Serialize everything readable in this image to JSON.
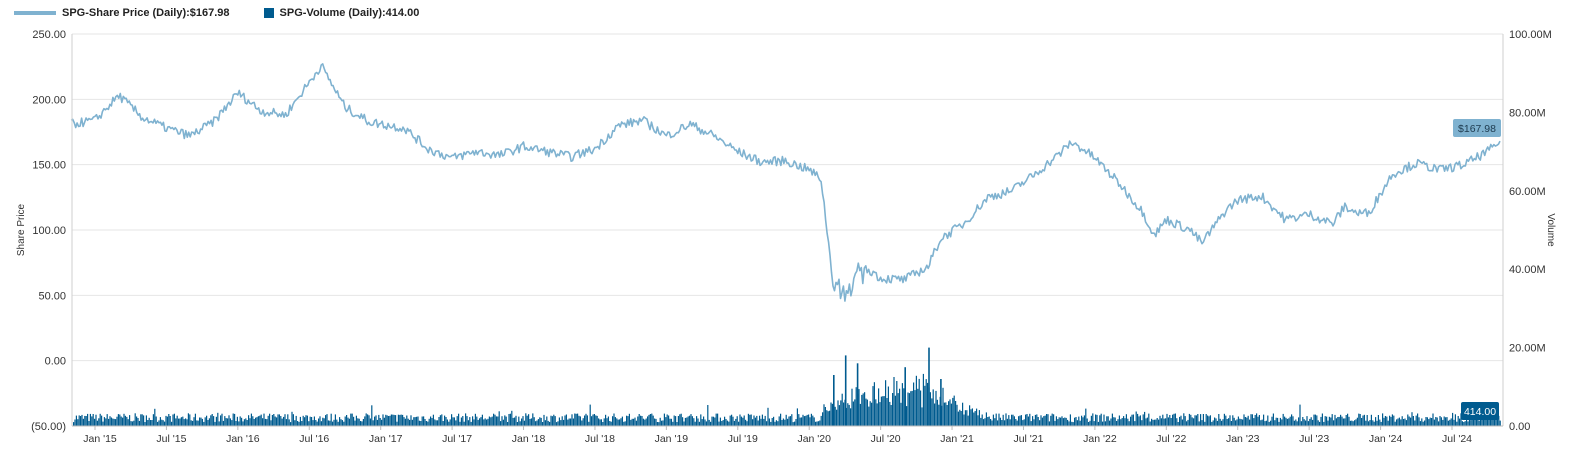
{
  "legend": {
    "price_label": "SPG-Share Price (Daily):$167.98",
    "volume_label": "SPG-Volume (Daily):414.00"
  },
  "colors": {
    "price": "#7fb2d0",
    "volume": "#005b8f",
    "grid": "#e6e6e6"
  },
  "chart_data": {
    "type": "line",
    "x_ticks": [
      "Jan '15",
      "Jul '15",
      "Jan '16",
      "Jul '16",
      "Jan '17",
      "Jul '17",
      "Jan '18",
      "Jul '18",
      "Jan '19",
      "Jul '19",
      "Jan '20",
      "Jul '20",
      "Jan '21",
      "Jul '21",
      "Jan '22",
      "Jul '22",
      "Jan '23",
      "Jul '23",
      "Jan '24",
      "Jul '24"
    ],
    "y_left": {
      "label": "Share Price",
      "range": [
        -50,
        250
      ],
      "ticks": [
        "250.00",
        "200.00",
        "150.00",
        "100.00",
        "50.00",
        "0.00",
        "(50.00)"
      ]
    },
    "y_right": {
      "label": "Volume",
      "range": [
        0,
        100
      ],
      "unit": "M",
      "ticks": [
        "100.00M",
        "80.00M",
        "60.00M",
        "40.00M",
        "20.00M",
        "0.00"
      ]
    },
    "last_price_label": "$167.98",
    "last_volume_label": "414.00",
    "series": [
      {
        "name": "SPG-Share Price (Daily)",
        "axis": "left",
        "x_start": "2014-11",
        "months": [
          "2014-11",
          "2015-01",
          "2015-03",
          "2015-05",
          "2015-07",
          "2015-09",
          "2015-11",
          "2016-01",
          "2016-03",
          "2016-05",
          "2016-07",
          "2016-08",
          "2016-10",
          "2016-12",
          "2017-01",
          "2017-03",
          "2017-05",
          "2017-07",
          "2017-09",
          "2017-11",
          "2018-01",
          "2018-03",
          "2018-05",
          "2018-07",
          "2018-09",
          "2018-11",
          "2019-01",
          "2019-03",
          "2019-05",
          "2019-07",
          "2019-09",
          "2019-11",
          "2020-01",
          "2020-02",
          "2020-03",
          "2020-04",
          "2020-05",
          "2020-06",
          "2020-07",
          "2020-09",
          "2020-10",
          "2020-11",
          "2020-12",
          "2021-02",
          "2021-04",
          "2021-06",
          "2021-08",
          "2021-10",
          "2021-11",
          "2021-12",
          "2022-01",
          "2022-03",
          "2022-05",
          "2022-06",
          "2022-07",
          "2022-09",
          "2022-10",
          "2022-12",
          "2023-01",
          "2023-03",
          "2023-05",
          "2023-07",
          "2023-09",
          "2023-10",
          "2023-11",
          "2023-12",
          "2024-02",
          "2024-04",
          "2024-06",
          "2024-08",
          "2024-10",
          "2024-11"
        ],
        "values": [
          181,
          184,
          203,
          186,
          178,
          172,
          183,
          205,
          191,
          188,
          213,
          226,
          194,
          183,
          181,
          178,
          162,
          155,
          160,
          157,
          164,
          160,
          156,
          162,
          180,
          184,
          172,
          181,
          172,
          160,
          152,
          153,
          146,
          139,
          60,
          52,
          64,
          70,
          63,
          62,
          67,
          72,
          93,
          105,
          125,
          130,
          143,
          158,
          167,
          162,
          155,
          136,
          114,
          96,
          108,
          100,
          90,
          115,
          123,
          126,
          108,
          112,
          105,
          118,
          113,
          113,
          143,
          151,
          146,
          150,
          160,
          168
        ],
        "values_note_units": "USD"
      },
      {
        "name": "SPG-Volume (Daily)",
        "axis": "right",
        "unit": "M",
        "typical_baseline": 2.5,
        "peaks": [
          {
            "date": "2020-03",
            "value": 13
          },
          {
            "date": "2020-04",
            "value": 18
          },
          {
            "date": "2020-05",
            "value": 16
          },
          {
            "date": "2020-09",
            "value": 15
          },
          {
            "date": "2020-11",
            "value": 20
          },
          {
            "date": "2020-12",
            "value": 12
          }
        ]
      }
    ]
  }
}
